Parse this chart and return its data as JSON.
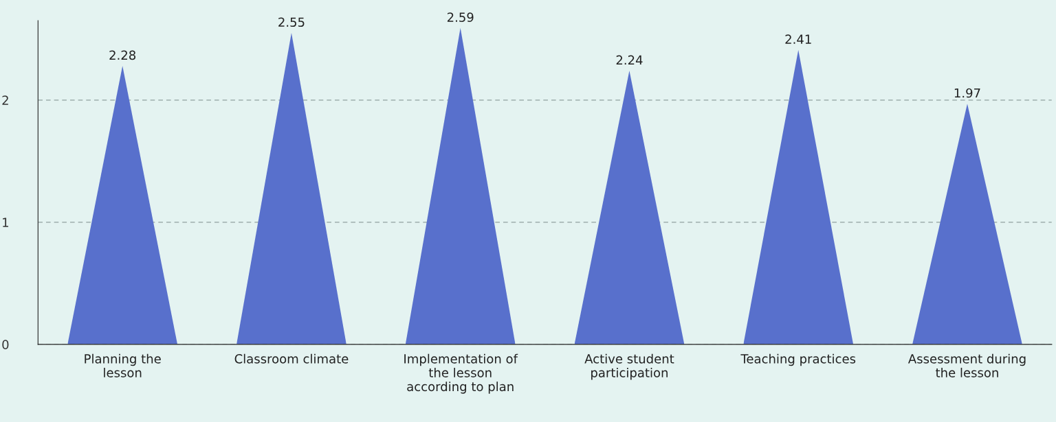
{
  "chart_data": {
    "type": "bar",
    "categories": [
      "Planning the\nlesson",
      "Classroom climate",
      "Implementation of\nthe lesson\naccording to plan",
      "Active student\nparticipation",
      "Teaching practices",
      "Assessment during\nthe lesson"
    ],
    "values": [
      2.28,
      2.55,
      2.59,
      2.24,
      2.41,
      1.97
    ],
    "color": "#5870cc",
    "ylim": [
      0,
      2.65
    ],
    "yticks": [
      0,
      1,
      2
    ],
    "grid": "y",
    "data_labels": true
  }
}
